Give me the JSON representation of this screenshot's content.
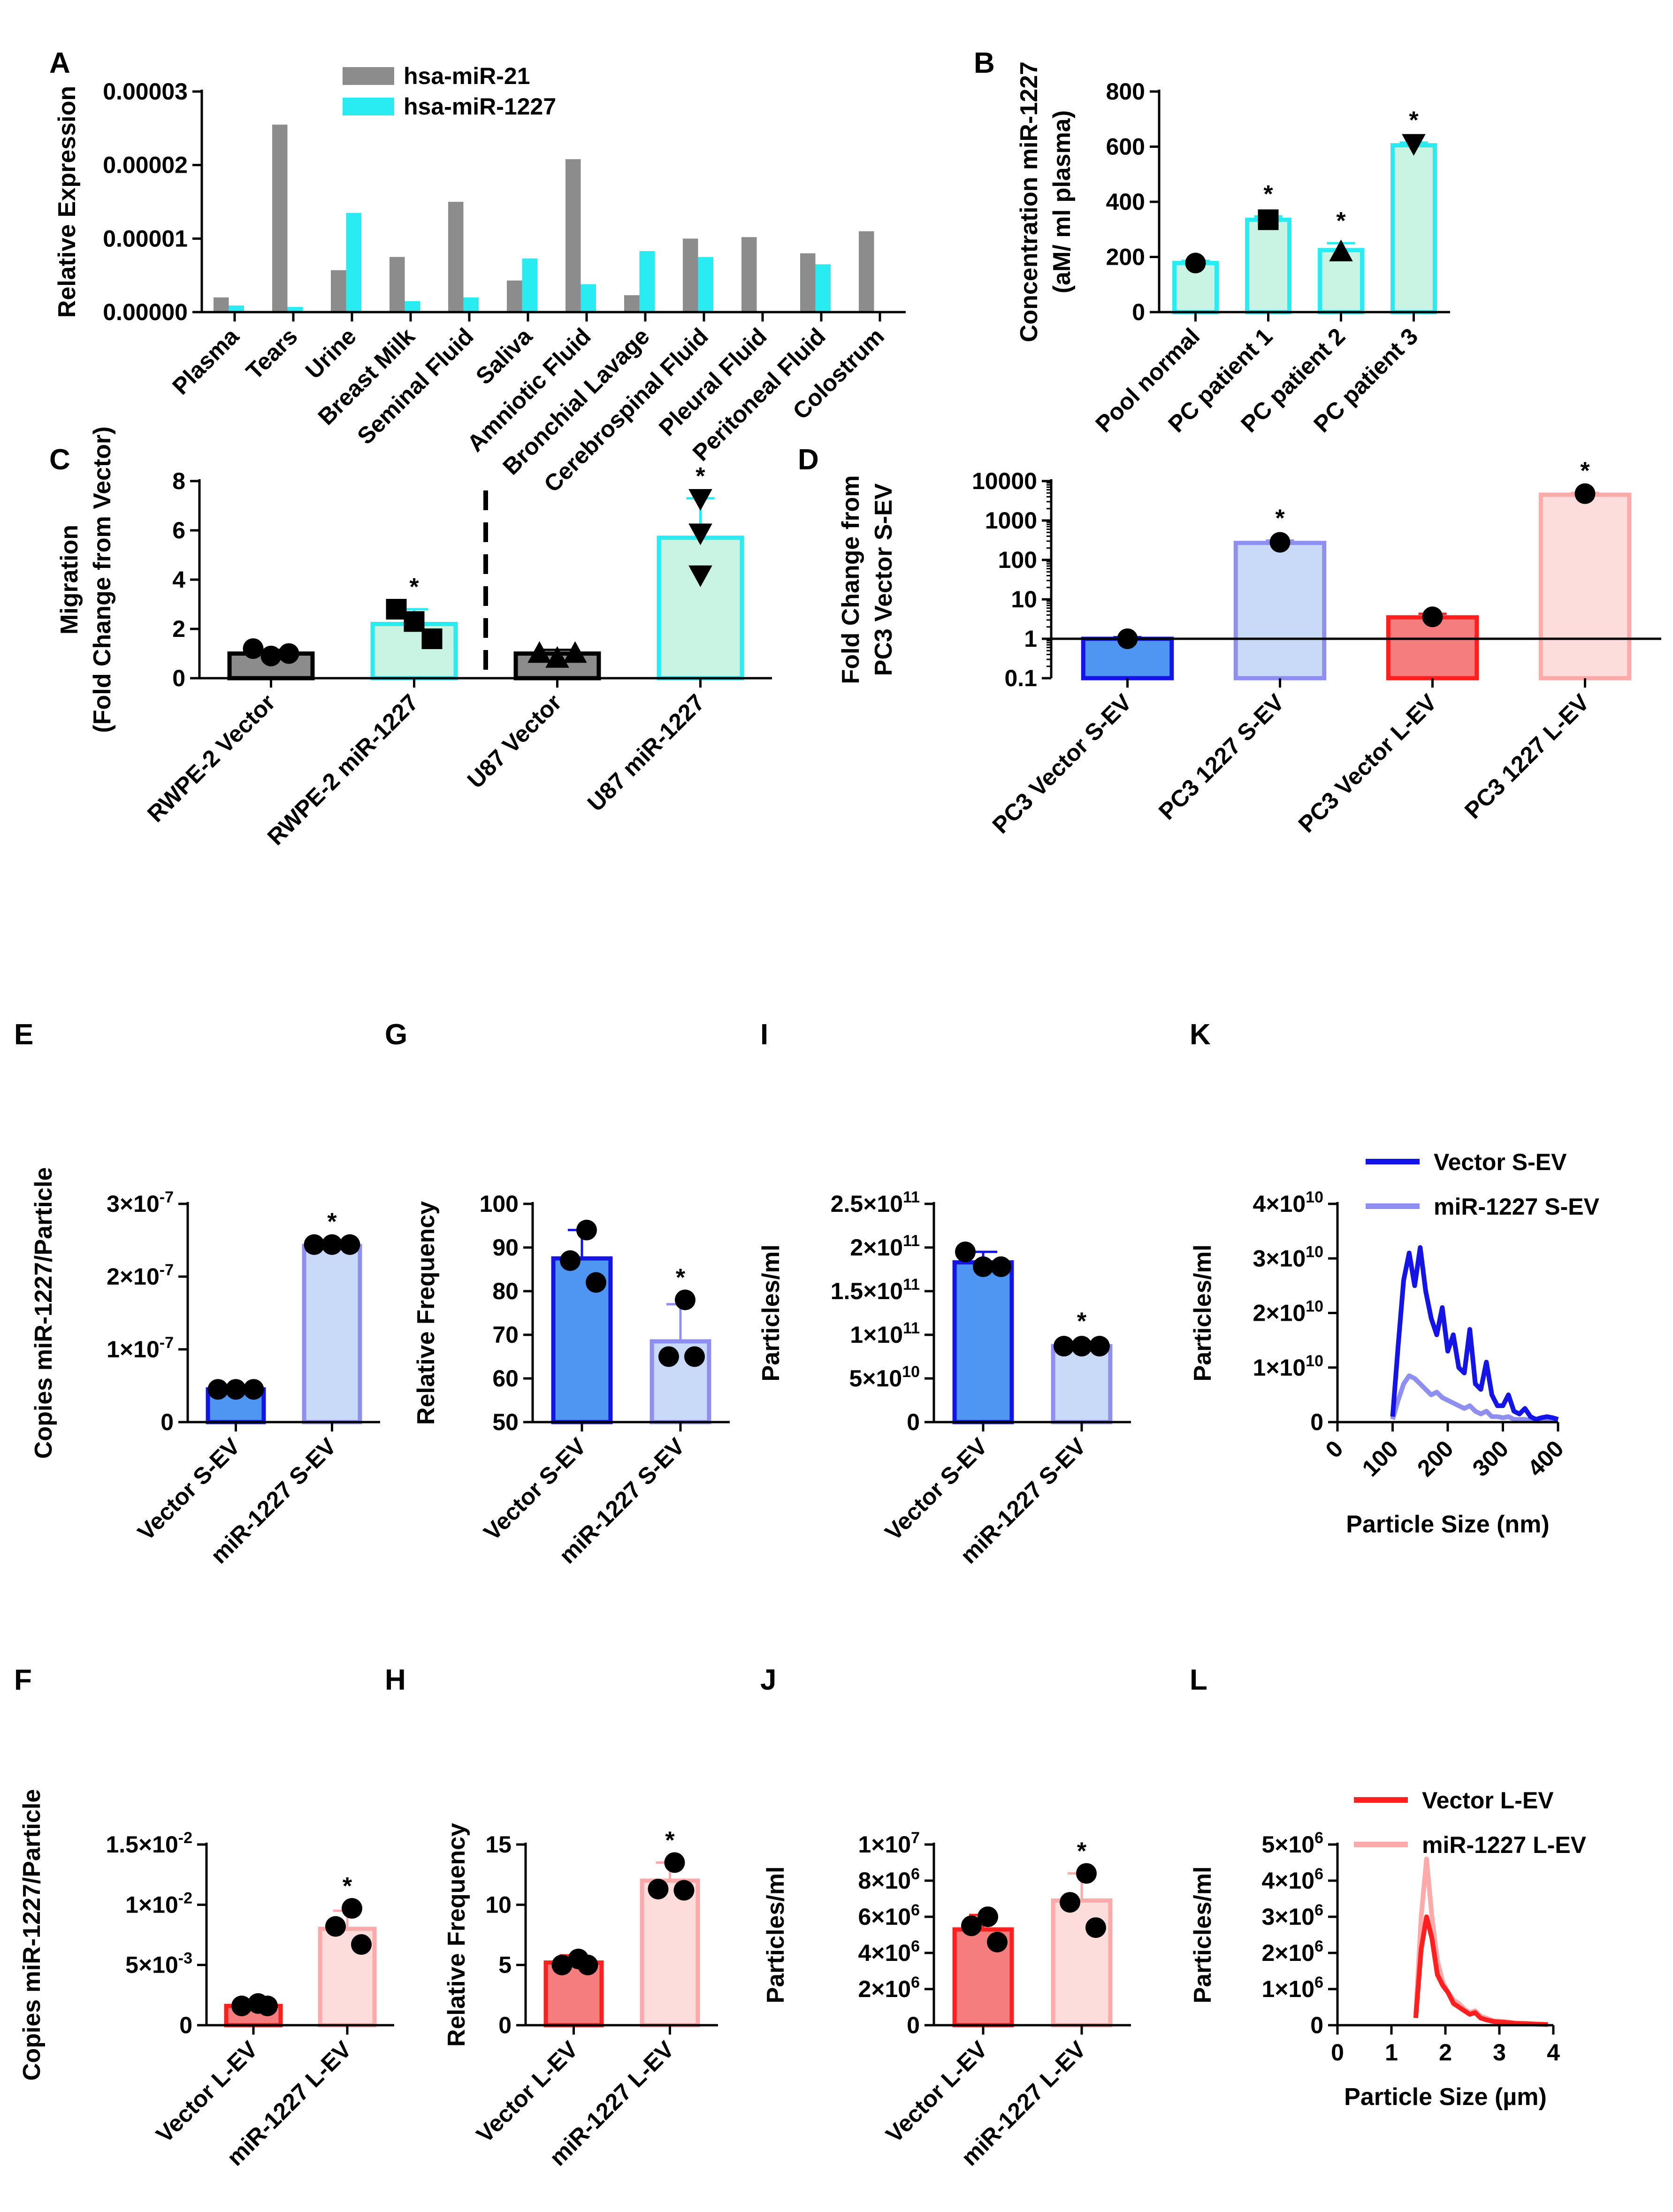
{
  "colors": {
    "gray": "#8c8c8c",
    "cyan": "#29ecf2",
    "cyan_fill": "#c9f3e3",
    "blue": "#1414e6",
    "blue_fill": "#4f95f2",
    "lavender": "#8f8ff2",
    "lavender_fill": "#c9daf8",
    "red": "#ff1f1f",
    "red_fill": "#f57d7d",
    "pink": "#ffaaaa",
    "pink_fill": "#fddcdc",
    "black": "#000000"
  },
  "chart_data": [
    {
      "id": "A",
      "letter": "A",
      "type": "bar",
      "scale": "linear",
      "ylabel": "Relative Expression",
      "xlabel": "",
      "ylim": [
        0,
        3e-05
      ],
      "yticks": [
        0,
        1e-05,
        2e-05,
        3e-05
      ],
      "ytick_labels": [
        "0.00000",
        "0.00001",
        "0.00002",
        "0.00003"
      ],
      "categories": [
        "Plasma",
        "Tears",
        "Urine",
        "Breast Milk",
        "Seminal Fluid",
        "Saliva",
        "Amniotic Fluid",
        "Bronchial Lavage",
        "Cerebrospinal Fluid",
        "Pleural Fluid",
        "Peritoneal Fluid",
        "Colostrum"
      ],
      "series": [
        {
          "name": "hsa-miR-21",
          "color": "#8c8c8c",
          "values": [
            2e-06,
            2.55e-05,
            5.7e-06,
            7.5e-06,
            1.5e-05,
            4.3e-06,
            2.08e-05,
            2.3e-06,
            1e-05,
            1.02e-05,
            8e-06,
            1.1e-05
          ]
        },
        {
          "name": "hsa-miR-1227",
          "color": "#29ecf2",
          "values": [
            9e-07,
            7e-07,
            1.35e-05,
            1.5e-06,
            2e-06,
            7.3e-06,
            3.8e-06,
            8.3e-06,
            7.5e-06,
            0.0,
            6.5e-06,
            0.0
          ]
        }
      ],
      "legend": {
        "position": "top-center",
        "entries": [
          "hsa-miR-21",
          "hsa-miR-1227"
        ]
      }
    },
    {
      "id": "B",
      "letter": "B",
      "type": "bar",
      "scale": "linear",
      "ylabel": "Concentration miR-1227",
      "ylabel2": "(aM/ ml plasma)",
      "ylim": [
        0,
        800
      ],
      "yticks": [
        0,
        200,
        400,
        600,
        800
      ],
      "ytick_labels": [
        "0",
        "200",
        "400",
        "600",
        "800"
      ],
      "categories": [
        "Pool normal",
        "PC patient 1",
        "PC patient 2",
        "PC patient 3"
      ],
      "values": [
        178,
        335,
        225,
        605
      ],
      "errors": [
        8,
        12,
        25,
        10
      ],
      "bar_color": "#29ecf2",
      "bar_fill": "#c9f3e3",
      "markers": [
        "circle",
        "square",
        "triangle-up",
        "triangle-down"
      ],
      "points": [
        [
          178
        ],
        [
          335
        ],
        [
          218
        ],
        [
          612
        ]
      ],
      "stars": [
        "",
        "*",
        "*",
        "*"
      ]
    },
    {
      "id": "C",
      "letter": "C",
      "type": "bar",
      "scale": "linear",
      "ylabel": "Migration",
      "ylabel2": "(Fold Change from Vector)",
      "ylim": [
        0,
        8
      ],
      "yticks": [
        0,
        2,
        4,
        6,
        8
      ],
      "ytick_labels": [
        "0",
        "2",
        "4",
        "6",
        "8"
      ],
      "categories": [
        "RWPE-2 Vector",
        "RWPE-2 miR-1227",
        "U87 Vector",
        "U87 miR-1227"
      ],
      "values": [
        1.0,
        2.2,
        1.0,
        5.7
      ],
      "errors": [
        0.15,
        0.6,
        0.15,
        1.6
      ],
      "bar_colors": [
        "#000000",
        "#29ecf2",
        "#000000",
        "#29ecf2"
      ],
      "bar_fills": [
        "#8c8c8c",
        "#c9f3e3",
        "#8c8c8c",
        "#c9f3e3"
      ],
      "markers": [
        "circle",
        "square",
        "triangle-up",
        "triangle-down"
      ],
      "points": [
        [
          1.2,
          0.9,
          1.0
        ],
        [
          2.8,
          2.3,
          1.6
        ],
        [
          1.0,
          0.8,
          1.0
        ],
        [
          7.3,
          5.9,
          4.2
        ]
      ],
      "stars": [
        "",
        "*",
        "",
        "*"
      ],
      "divider_after": 1
    },
    {
      "id": "D",
      "letter": "D",
      "type": "bar",
      "scale": "log",
      "ylabel": "Fold Change from",
      "ylabel2": "PC3 Vector S-EV",
      "ylim": [
        0.1,
        10000
      ],
      "yticks": [
        0.1,
        1,
        10,
        100,
        1000,
        10000
      ],
      "ytick_labels": [
        "0.1",
        "1",
        "10",
        "100",
        "1000",
        "10000"
      ],
      "categories": [
        "PC3 Vector S-EV",
        "PC3 1227 S-EV",
        "PC3 Vector L-EV",
        "PC3 1227 L-EV"
      ],
      "values": [
        1.0,
        270,
        3.5,
        4500
      ],
      "errors": [
        0.1,
        40,
        0.8,
        500
      ],
      "bar_colors": [
        "#1414e6",
        "#8f8ff2",
        "#ff1f1f",
        "#ffaaaa"
      ],
      "bar_fills": [
        "#4f95f2",
        "#c9daf8",
        "#f57d7d",
        "#fddcdc"
      ],
      "markers": [
        "circle",
        "circle",
        "circle",
        "circle"
      ],
      "points": [
        [
          1.0
        ],
        [
          280
        ],
        [
          3.6
        ],
        [
          4800
        ]
      ],
      "stars": [
        "",
        "*",
        "",
        "*"
      ],
      "baseline": 1
    },
    {
      "id": "E",
      "letter": "E",
      "type": "bar",
      "scale": "linear",
      "ylabel": "Copies miR-1227/Particle",
      "ylim": [
        0,
        3e-07
      ],
      "yticks": [
        0,
        1e-07,
        2e-07,
        3e-07
      ],
      "ytick_labels": [
        [
          "0",
          ""
        ],
        [
          "1×10",
          "-7"
        ],
        [
          "2×10",
          "-7"
        ],
        [
          "3×10",
          "-7"
        ]
      ],
      "categories": [
        "Vector S-EV",
        "miR-1227 S-EV"
      ],
      "values": [
        4.5e-08,
        2.42e-07
      ],
      "errors": [
        3e-09,
        3e-09
      ],
      "bar_colors": [
        "#1414e6",
        "#8f8ff2"
      ],
      "bar_fills": [
        "#4f95f2",
        "#c9daf8"
      ],
      "points": [
        [
          4.5e-08,
          4.5e-08,
          4.5e-08
        ],
        [
          2.44e-07,
          2.44e-07,
          2.44e-07
        ]
      ],
      "stars": [
        "",
        "*"
      ]
    },
    {
      "id": "G",
      "letter": "G",
      "type": "bar",
      "scale": "linear",
      "ylabel": "Relative Frequency",
      "ylim": [
        50,
        100
      ],
      "yticks": [
        50,
        60,
        70,
        80,
        90,
        100
      ],
      "ytick_labels": [
        "50",
        "60",
        "70",
        "80",
        "90",
        "100"
      ],
      "categories": [
        "Vector S-EV",
        "miR-1227 S-EV"
      ],
      "values": [
        87.5,
        68.5
      ],
      "errors": [
        6.5,
        8.5
      ],
      "bar_colors": [
        "#1414e6",
        "#8f8ff2"
      ],
      "bar_fills": [
        "#4f95f2",
        "#c9daf8"
      ],
      "points": [
        [
          94,
          87,
          82
        ],
        [
          78,
          65,
          65
        ]
      ],
      "stars": [
        "",
        "*"
      ]
    },
    {
      "id": "I",
      "letter": "I",
      "type": "bar",
      "scale": "linear",
      "ylabel": "Particles/ml",
      "ylim": [
        0,
        250000000000.0
      ],
      "yticks": [
        0,
        50000000000.0,
        100000000000.0,
        150000000000.0,
        200000000000.0,
        250000000000.0
      ],
      "ytick_labels": [
        [
          "0",
          ""
        ],
        [
          "5×10",
          "10"
        ],
        [
          "1×10",
          "11"
        ],
        [
          "1.5×10",
          "11"
        ],
        [
          "2×10",
          "11"
        ],
        [
          "2.5×10",
          "11"
        ]
      ],
      "categories": [
        "Vector S-EV",
        "miR-1227 S-EV"
      ],
      "values": [
        183000000000.0,
        87000000000.0
      ],
      "errors": [
        12000000000.0,
        3000000000.0
      ],
      "bar_colors": [
        "#1414e6",
        "#8f8ff2"
      ],
      "bar_fills": [
        "#4f95f2",
        "#c9daf8"
      ],
      "points": [
        [
          195000000000.0,
          178000000000.0,
          178000000000.0
        ],
        [
          87000000000.0,
          87000000000.0,
          87000000000.0
        ]
      ],
      "stars": [
        "",
        "*"
      ]
    },
    {
      "id": "K",
      "letter": "K",
      "type": "line",
      "scale": "linear",
      "ylabel": "Particles/ml",
      "xlabel": "Particle Size (nm)",
      "xlim": [
        0,
        400
      ],
      "xticks": [
        0,
        100,
        200,
        300,
        400
      ],
      "xtick_labels": [
        "0",
        "100",
        "200",
        "300",
        "400"
      ],
      "ylim": [
        0,
        40000000000.0
      ],
      "yticks": [
        0,
        10000000000.0,
        20000000000.0,
        30000000000.0,
        40000000000.0
      ],
      "ytick_labels": [
        [
          "0",
          ""
        ],
        [
          "1×10",
          "10"
        ],
        [
          "2×10",
          "10"
        ],
        [
          "3×10",
          "10"
        ],
        [
          "4×10",
          "10"
        ]
      ],
      "series": [
        {
          "name": "Vector S-EV",
          "color": "#1414e6",
          "x": [
            100,
            110,
            120,
            130,
            140,
            150,
            160,
            170,
            180,
            190,
            200,
            210,
            220,
            230,
            240,
            250,
            260,
            270,
            280,
            290,
            300,
            310,
            320,
            330,
            340,
            350,
            360,
            370,
            380,
            390,
            400
          ],
          "y": [
            1000000000.0,
            14000000000.0,
            26000000000.0,
            31000000000.0,
            25000000000.0,
            32000000000.0,
            24000000000.0,
            19000000000.0,
            16000000000.0,
            21000000000.0,
            13000000000.0,
            16000000000.0,
            10000000000.0,
            9000000000.0,
            17000000000.0,
            7000000000.0,
            6000000000.0,
            11000000000.0,
            5000000000.0,
            3000000000.0,
            3000000000.0,
            5000000000.0,
            2000000000.0,
            1500000000.0,
            2500000000.0,
            1000000000.0,
            500000000.0,
            800000000.0,
            1000000000.0,
            800000000.0,
            500000000.0
          ]
        },
        {
          "name": "miR-1227 S-EV",
          "color": "#8f8ff2",
          "x": [
            100,
            110,
            120,
            130,
            140,
            150,
            160,
            170,
            180,
            190,
            200,
            210,
            220,
            230,
            240,
            250,
            260,
            270,
            280,
            290,
            300,
            310,
            320,
            330,
            340,
            350,
            360,
            370,
            380,
            390,
            400
          ],
          "y": [
            500000000.0,
            4000000000.0,
            7000000000.0,
            8500000000.0,
            8000000000.0,
            7000000000.0,
            6000000000.0,
            5000000000.0,
            5500000000.0,
            4500000000.0,
            4000000000.0,
            3500000000.0,
            3000000000.0,
            2500000000.0,
            3000000000.0,
            2000000000.0,
            1500000000.0,
            2000000000.0,
            1000000000.0,
            1000000000.0,
            800000000.0,
            1000000000.0,
            500000000.0,
            500000000.0,
            500000000.0,
            300000000.0,
            200000000.0,
            200000000.0,
            200000000.0,
            200000000.0,
            200000000.0
          ]
        }
      ],
      "legend": {
        "position": "top-right",
        "entries": [
          "Vector S-EV",
          "miR-1227 S-EV"
        ]
      }
    },
    {
      "id": "F",
      "letter": "F",
      "type": "bar",
      "scale": "linear",
      "ylabel": "Copies miR-1227/Particle",
      "ylim": [
        0,
        0.015
      ],
      "yticks": [
        0,
        0.005,
        0.01,
        0.015
      ],
      "ytick_labels": [
        [
          "0",
          ""
        ],
        [
          "5×10",
          "-3"
        ],
        [
          "1×10",
          "-2"
        ],
        [
          "1.5×10",
          "-2"
        ]
      ],
      "categories": [
        "Vector L-EV",
        "miR-1227 L-EV"
      ],
      "values": [
        0.0016,
        0.008
      ],
      "errors": [
        0.0002,
        0.0015
      ],
      "bar_colors": [
        "#ff1f1f",
        "#ffaaaa"
      ],
      "bar_fills": [
        "#f57d7d",
        "#fddcdc"
      ],
      "points": [
        [
          0.0018,
          0.0016,
          0.0016
        ],
        [
          0.0097,
          0.0082,
          0.0067
        ]
      ],
      "stars": [
        "",
        "*"
      ]
    },
    {
      "id": "H",
      "letter": "H",
      "type": "bar",
      "scale": "linear",
      "ylabel": "Relative Frequency",
      "ylim": [
        0,
        15
      ],
      "yticks": [
        0,
        5,
        10,
        15
      ],
      "ytick_labels": [
        "0",
        "5",
        "10",
        "15"
      ],
      "categories": [
        "Vector L-EV",
        "miR-1227 L-EV"
      ],
      "values": [
        5.2,
        12.0
      ],
      "errors": [
        0.6,
        1.5
      ],
      "bar_colors": [
        "#ff1f1f",
        "#ffaaaa"
      ],
      "bar_fills": [
        "#f57d7d",
        "#fddcdc"
      ],
      "points": [
        [
          5.5,
          5.0,
          5.0
        ],
        [
          13.5,
          11.3,
          11.2
        ]
      ],
      "stars": [
        "",
        "*"
      ]
    },
    {
      "id": "J",
      "letter": "J",
      "type": "bar",
      "scale": "linear",
      "ylabel": "Particles/ml",
      "ylim": [
        0,
        10000000.0
      ],
      "yticks": [
        0,
        2000000.0,
        4000000.0,
        6000000.0,
        8000000.0,
        10000000.0
      ],
      "ytick_labels": [
        [
          "0",
          ""
        ],
        [
          "2×10",
          "6"
        ],
        [
          "4×10",
          "6"
        ],
        [
          "6×10",
          "6"
        ],
        [
          "8×10",
          "6"
        ],
        [
          "1×10",
          "7"
        ]
      ],
      "categories": [
        "Vector L-EV",
        "miR-1227 L-EV"
      ],
      "values": [
        5300000.0,
        6900000.0
      ],
      "errors": [
        800000.0,
        1500000.0
      ],
      "bar_colors": [
        "#ff1f1f",
        "#ffaaaa"
      ],
      "bar_fills": [
        "#f57d7d",
        "#fddcdc"
      ],
      "points": [
        [
          6000000.0,
          5500000.0,
          4600000.0
        ],
        [
          8400000.0,
          6800000.0,
          5400000.0
        ]
      ],
      "stars": [
        "",
        "*"
      ]
    },
    {
      "id": "L",
      "letter": "L",
      "type": "line",
      "scale": "linear",
      "ylabel": "Particles/ml",
      "xlabel": "Particle Size (µm)",
      "xlim": [
        0,
        4
      ],
      "xticks": [
        0,
        1,
        2,
        3,
        4
      ],
      "xtick_labels": [
        "0",
        "1",
        "2",
        "3",
        "4"
      ],
      "ylim": [
        0,
        5000000.0
      ],
      "yticks": [
        0,
        1000000.0,
        2000000.0,
        3000000.0,
        4000000.0,
        5000000.0
      ],
      "ytick_labels": [
        [
          "0",
          ""
        ],
        [
          "1×10",
          "6"
        ],
        [
          "2×10",
          "6"
        ],
        [
          "3×10",
          "6"
        ],
        [
          "4×10",
          "6"
        ],
        [
          "5×10",
          "6"
        ]
      ],
      "series": [
        {
          "name": "Vector L-EV",
          "color": "#ff1f1f",
          "x": [
            1.45,
            1.55,
            1.65,
            1.75,
            1.85,
            1.95,
            2.05,
            2.15,
            2.25,
            2.35,
            2.45,
            2.55,
            2.65,
            2.75,
            2.9,
            3.1,
            3.3,
            3.5,
            3.7,
            3.9
          ],
          "y": [
            200000.0,
            2100000.0,
            3000000.0,
            2400000.0,
            1400000.0,
            1100000.0,
            900000.0,
            600000.0,
            500000.0,
            400000.0,
            300000.0,
            350000.0,
            200000.0,
            150000.0,
            100000.0,
            80000.0,
            50000.0,
            40000.0,
            30000.0,
            20000.0
          ]
        },
        {
          "name": "miR-1227 L-EV",
          "color": "#ffaaaa",
          "x": [
            1.45,
            1.55,
            1.65,
            1.75,
            1.85,
            1.95,
            2.05,
            2.15,
            2.25,
            2.35,
            2.45,
            2.55,
            2.65,
            2.75,
            2.9,
            3.1,
            3.3,
            3.5,
            3.7,
            3.9
          ],
          "y": [
            300000.0,
            3000000.0,
            4600000.0,
            3000000.0,
            1800000.0,
            1200000.0,
            900000.0,
            700000.0,
            600000.0,
            450000.0,
            350000.0,
            400000.0,
            250000.0,
            200000.0,
            120000.0,
            100000.0,
            60000.0,
            50000.0,
            30000.0,
            20000.0
          ]
        }
      ],
      "legend": {
        "position": "top-right",
        "entries": [
          "Vector L-EV",
          "miR-1227 L-EV"
        ]
      }
    }
  ]
}
